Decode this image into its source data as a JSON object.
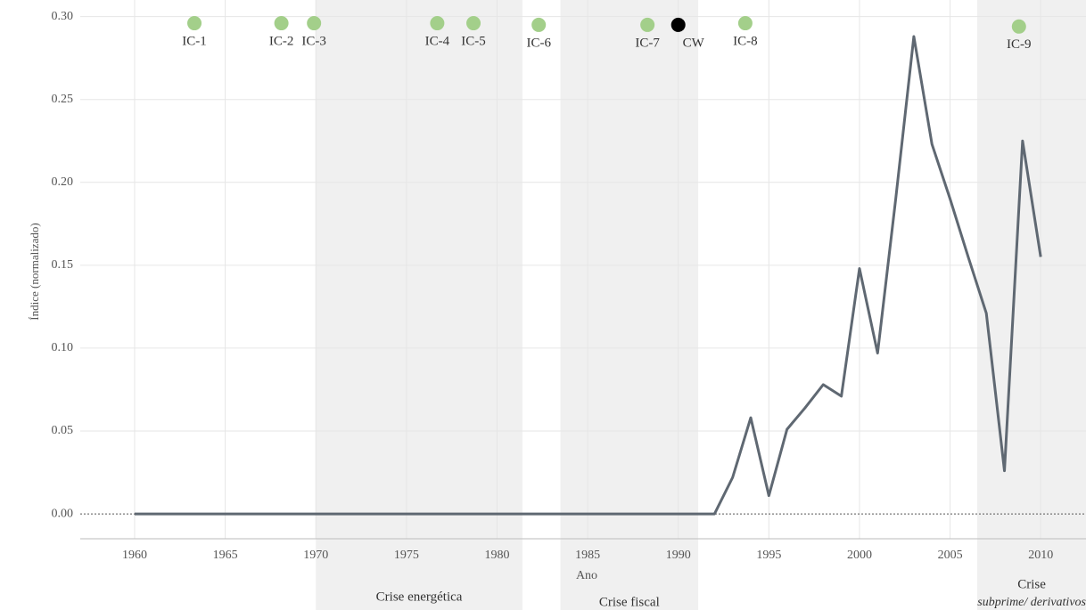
{
  "chart_data": {
    "type": "line",
    "x_label": "Ano",
    "y_label": "Índice (normalizado)",
    "xlim": [
      1957,
      2012.5
    ],
    "ylim": [
      -0.015,
      0.31
    ],
    "xticks": [
      1960,
      1965,
      1970,
      1975,
      1980,
      1985,
      1990,
      1995,
      2000,
      2005,
      2010
    ],
    "yticks": [
      {
        "value": 0,
        "label": "0.00"
      },
      {
        "value": 0.05,
        "label": "0.05"
      },
      {
        "value": 0.1,
        "label": "0.10"
      },
      {
        "value": 0.15,
        "label": "0.15"
      },
      {
        "value": 0.2,
        "label": "0.20"
      },
      {
        "value": 0.25,
        "label": "0.25"
      },
      {
        "value": 0.3,
        "label": "0.30"
      }
    ],
    "grid": true,
    "x": [
      1960,
      1961,
      1962,
      1963,
      1964,
      1965,
      1966,
      1967,
      1968,
      1969,
      1970,
      1971,
      1972,
      1973,
      1974,
      1975,
      1976,
      1977,
      1978,
      1979,
      1980,
      1981,
      1982,
      1983,
      1984,
      1985,
      1986,
      1987,
      1988,
      1989,
      1990,
      1991,
      1992,
      1993,
      1994,
      1995,
      1996,
      1997,
      1998,
      1999,
      2000,
      2001,
      2002,
      2003,
      2004,
      2005,
      2006,
      2007,
      2008,
      2009,
      2010
    ],
    "series": [
      {
        "color": "#5f6872",
        "values": [
          0,
          0,
          0,
          0,
          0,
          0,
          0,
          0,
          0,
          0,
          0,
          0,
          0,
          0,
          0,
          0,
          0,
          0,
          0,
          0,
          0,
          0,
          0,
          0,
          0,
          0,
          0,
          0,
          0,
          0,
          0,
          0,
          0,
          0.022,
          0.058,
          0.011,
          0.051,
          0.064,
          0.078,
          0.071,
          0.148,
          0.097,
          0.19,
          0.288,
          0.223,
          0.19,
          0.155,
          0.121,
          0.026,
          0.225,
          0.155
        ]
      }
    ],
    "regions": [
      {
        "start": 1970,
        "end": 1981.4,
        "label": "Crise energética"
      },
      {
        "start": 1983.5,
        "end": 1991.1,
        "label": "Crise fiscal"
      },
      {
        "start": 2006.5,
        "end": 2012.5,
        "label": "Crise",
        "sublabel": "subprime/ derivativos"
      }
    ],
    "events": {
      "labels": [
        "IC-1",
        "IC-2",
        "IC-3",
        "IC-4",
        "IC-5",
        "IC-6",
        "IC-7",
        "CW",
        "IC-8",
        "IC-9"
      ],
      "x": [
        1963.3,
        1968.1,
        1969.9,
        1976.7,
        1978.7,
        1982.3,
        1988.3,
        1990.0,
        1993.7,
        2008.8
      ],
      "y": [
        0.296,
        0.296,
        0.296,
        0.296,
        0.296,
        0.295,
        0.295,
        0.295,
        0.296,
        0.294
      ],
      "colors": [
        "#a3cf8a",
        "#a3cf8a",
        "#a3cf8a",
        "#a3cf8a",
        "#a3cf8a",
        "#a3cf8a",
        "#a3cf8a",
        "#000000",
        "#a3cf8a",
        "#a3cf8a"
      ]
    }
  }
}
